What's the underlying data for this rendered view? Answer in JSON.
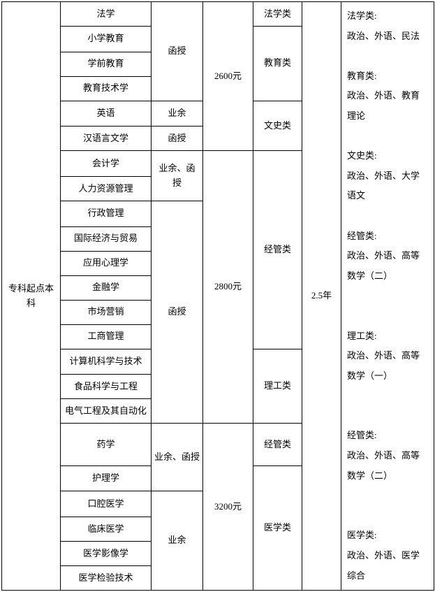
{
  "level": "专科起点本科",
  "majors": {
    "m1": "法学",
    "m2": "小学教育",
    "m3": "学前教育",
    "m4": "教育技术学",
    "m5": "英语",
    "m6": "汉语言文学",
    "m7": "会计学",
    "m8": "人力资源管理",
    "m9": "行政管理",
    "m10": "国际经济与贸易",
    "m11": "应用心理学",
    "m12": "金融学",
    "m13": "市场营销",
    "m14": "工商管理",
    "m15": "计算机科学与技术",
    "m16": "食品科学与工程",
    "m17": "电气工程及其自动化",
    "m18": "药学",
    "m19": "护理学",
    "m20": "口腔医学",
    "m21": "临床医学",
    "m22": "医学影像学",
    "m23": "医学检验技术"
  },
  "modes": {
    "hanshou": "函授",
    "yeyu": "业余",
    "yeyu_hanshou": "业余、函授",
    "yeyu_hanshou_br1": "业余、函",
    "yeyu_hanshou_br2": "授"
  },
  "fees": {
    "f2600": "2600元",
    "f2800": "2800元",
    "f3200": "3200元"
  },
  "categories": {
    "law": "法学类",
    "edu": "教育类",
    "lit": "文史类",
    "econ": "经管类",
    "sci": "理工类",
    "med": "医学类"
  },
  "duration": "2.5年",
  "subjects_text": "法学类:\n政治、外语、民法\n\n教育类:\n政治、外语、教育理论\n\n文史类:\n政治、外语、大学语文\n\n经管类:\n政治、外语、高等数学（二）\n\n\n理工类:\n政治、外语、高等数学（一）\n\n\n经管类:\n政治、外语、高等数学（二）\n\n\n医学类:\n政治、外语、医学综合",
  "style": {
    "font_size": 13,
    "border_color": "#000000",
    "background": "#ffffff",
    "text_color": "#000000"
  }
}
